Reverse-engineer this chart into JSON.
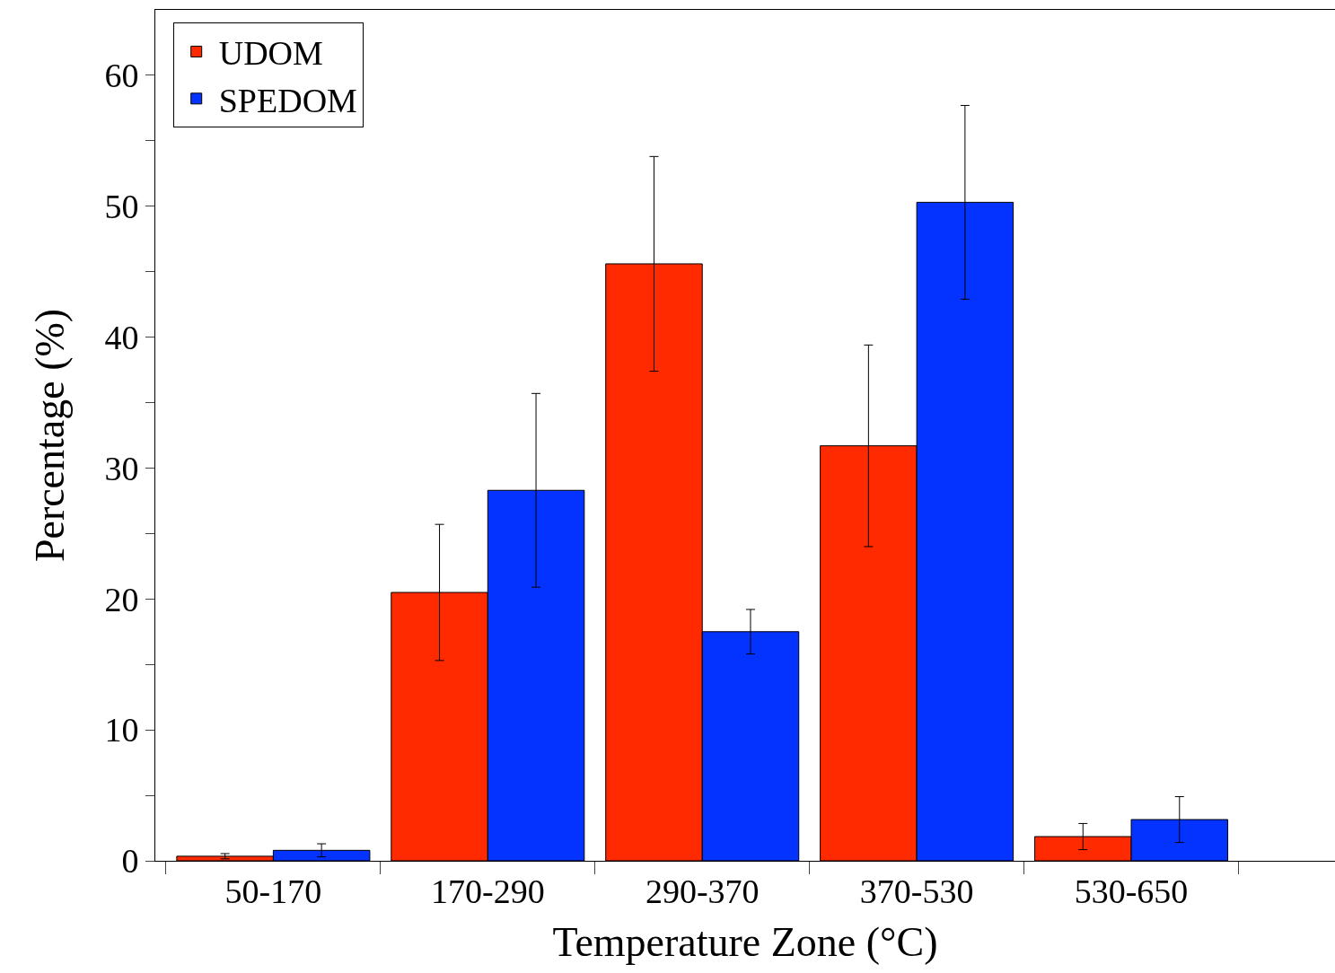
{
  "chart_data": {
    "type": "bar",
    "xlabel": "Temperature Zone (°C)",
    "ylabel": "Percentage (%)",
    "categories": [
      "50-170",
      "170-290",
      "290-370",
      "370-530",
      "530-650"
    ],
    "series": [
      {
        "name": "UDOM",
        "color": "#ff2a00",
        "values": [
          0.35,
          20.5,
          45.6,
          31.7,
          1.85
        ],
        "errors": [
          0.2,
          5.2,
          8.2,
          7.7,
          1.0
        ]
      },
      {
        "name": "SPEDOM",
        "color": "#0433ff",
        "values": [
          0.8,
          28.3,
          17.5,
          50.3,
          3.15
        ],
        "errors": [
          0.5,
          7.4,
          1.7,
          7.4,
          1.75
        ]
      }
    ],
    "ylim": [
      0,
      65
    ],
    "yticks": [
      0,
      {
        "value": 5,
        "label": null
      },
      10,
      {
        "value": 15,
        "label": null
      },
      20,
      {
        "value": 25,
        "label": null
      },
      30,
      {
        "value": 35,
        "label": null
      },
      40,
      {
        "value": 45,
        "label": null
      },
      50,
      {
        "value": 55,
        "label": null
      },
      60
    ],
    "grid": false,
    "legend": "top left"
  }
}
